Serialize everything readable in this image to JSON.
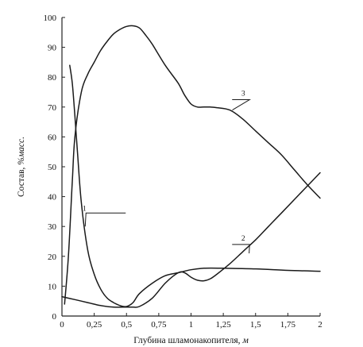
{
  "chart_data": {
    "type": "line",
    "title": "",
    "xlabel": "Глубина шламонакопителя,",
    "xlabel_unit": "м",
    "ylabel": "Состав,",
    "ylabel_unit": "%масс.",
    "xlim": [
      0,
      2
    ],
    "ylim": [
      0,
      100
    ],
    "x_ticks": [
      "0",
      "0,25",
      "0,5",
      "0,75",
      "1",
      "1,25",
      "1,5",
      "1,75",
      "2"
    ],
    "y_ticks": [
      "0",
      "10",
      "20",
      "30",
      "40",
      "50",
      "60",
      "70",
      "80",
      "90",
      "100"
    ],
    "grid": false,
    "legend": "none",
    "series": [
      {
        "name": "1",
        "label_at": [
          0.42,
          34.5
        ],
        "leader_to": [
          0.18,
          30
        ],
        "x": [
          0.06,
          0.08,
          0.1,
          0.12,
          0.15,
          0.2,
          0.25,
          0.3,
          0.35,
          0.4,
          0.45,
          0.5,
          0.55,
          0.6,
          0.7,
          0.8,
          0.9,
          1.0,
          1.1,
          1.25,
          1.5,
          1.75,
          2.0
        ],
        "y": [
          84,
          78,
          67,
          55,
          38,
          22,
          14,
          9,
          6,
          4.5,
          3.5,
          3.2,
          4.5,
          7.5,
          11,
          13.5,
          14.5,
          15.5,
          16,
          16,
          15.8,
          15.3,
          15
        ]
      },
      {
        "name": "2",
        "label_at": [
          1.38,
          24.5
        ],
        "leader_to": [
          1.45,
          21
        ],
        "x": [
          0.0,
          0.1,
          0.2,
          0.3,
          0.4,
          0.5,
          0.55,
          0.6,
          0.7,
          0.8,
          0.9,
          0.95,
          1.0,
          1.05,
          1.1,
          1.15,
          1.2,
          1.3,
          1.4,
          1.5,
          1.6,
          1.7,
          1.8,
          1.9,
          2.0
        ],
        "y": [
          6.5,
          5.5,
          4.5,
          3.5,
          3,
          3,
          3,
          3.2,
          6,
          11,
          14.5,
          14.5,
          13,
          12,
          11.8,
          12.5,
          14,
          17.5,
          21.5,
          25.5,
          30,
          34.5,
          39,
          43.5,
          48
        ]
      },
      {
        "name": "3",
        "label_at": [
          1.38,
          73
        ],
        "leader_to": [
          1.32,
          69
        ],
        "x": [
          0.02,
          0.05,
          0.08,
          0.1,
          0.15,
          0.2,
          0.25,
          0.3,
          0.35,
          0.4,
          0.45,
          0.5,
          0.55,
          0.6,
          0.65,
          0.7,
          0.8,
          0.9,
          0.95,
          1.0,
          1.05,
          1.1,
          1.15,
          1.2,
          1.3,
          1.4,
          1.5,
          1.6,
          1.7,
          1.8,
          1.9,
          2.0
        ],
        "y": [
          4,
          20,
          45,
          60,
          75,
          81,
          85,
          89,
          92,
          94.5,
          96,
          97,
          97.2,
          96.5,
          94,
          91,
          84,
          78,
          74,
          71,
          70,
          70,
          70,
          69.8,
          69,
          66,
          62,
          58,
          54,
          49,
          44,
          39.5
        ]
      }
    ]
  }
}
